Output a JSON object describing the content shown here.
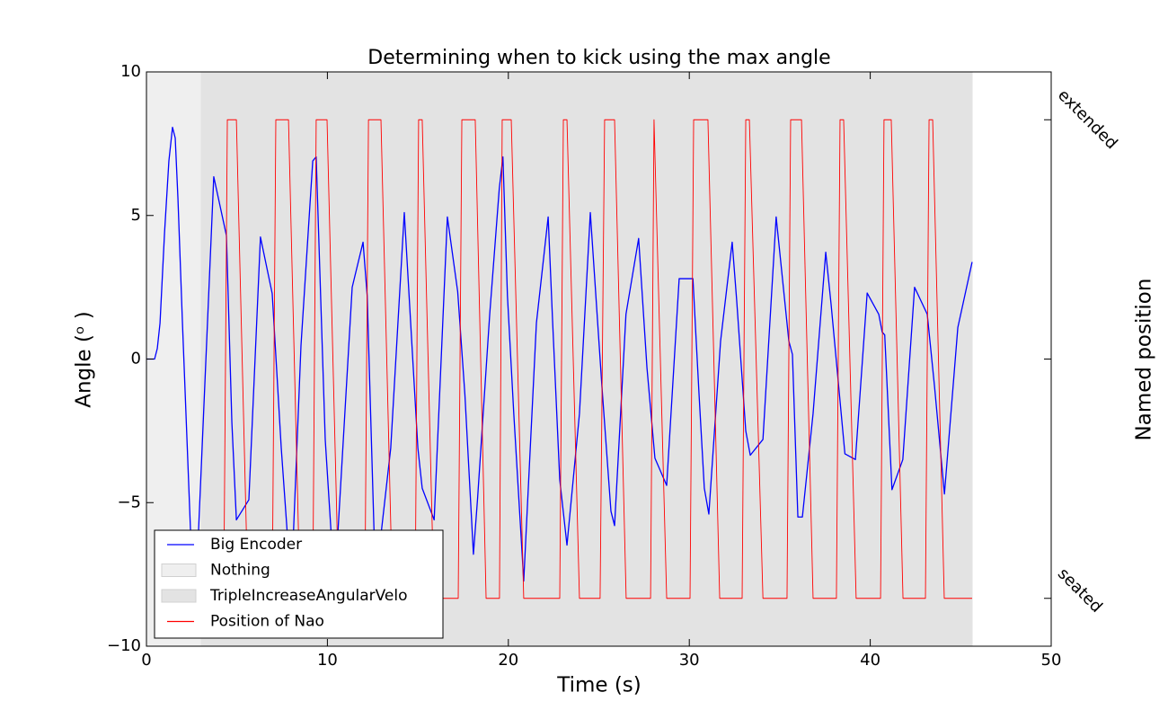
{
  "chart_data": {
    "type": "line",
    "title": "Determining when to kick using the max angle",
    "xlabel": "Time (s)",
    "ylabel": "Angle (ᵒ )",
    "y2label": "Named position",
    "xlim": [
      0,
      50
    ],
    "ylim": [
      -10,
      10
    ],
    "y2lim": [
      -1.2,
      1.2
    ],
    "xticks": [
      0,
      10,
      20,
      30,
      40,
      50
    ],
    "yticks": [
      {
        "value": -10,
        "label": "−10"
      },
      {
        "value": -5,
        "label": "−5"
      },
      0,
      5,
      10
    ],
    "y2ticks": [
      {
        "value": -1,
        "label": "seated"
      },
      {
        "value": 0,
        "label": null
      },
      {
        "value": 1,
        "label": "extended"
      }
    ],
    "spans": [
      {
        "name": "Nothing",
        "start": 0,
        "end": 3.03,
        "color": "#efefef"
      },
      {
        "name": "TripleIncreaseAngularVelo",
        "start": 3.03,
        "end": 45.63,
        "color": "#e3e3e3"
      }
    ],
    "series": [
      {
        "name": "Big Encoder",
        "color": "#0000ff",
        "x": [
          0,
          0.45,
          0.6,
          0.75,
          1.0,
          1.24,
          1.44,
          1.59,
          1.74,
          1.99,
          2.43,
          2.7,
          3.72,
          4.42,
          4.72,
          4.97,
          5.66,
          6.3,
          6.95,
          7.45,
          8.0,
          8.54,
          9.19,
          9.38,
          9.58,
          9.88,
          10.4,
          11.37,
          11.97,
          12.2,
          12.66,
          13.5,
          14.25,
          15.0,
          15.24,
          15.9,
          16.63,
          17.2,
          17.6,
          18.07,
          18.3,
          18.97,
          19.5,
          19.7,
          19.95,
          20.3,
          20.85,
          21.55,
          22.2,
          22.44,
          22.84,
          23.24,
          23.93,
          24.53,
          25.17,
          25.67,
          25.87,
          26.5,
          27.2,
          27.66,
          28.1,
          28.75,
          29.44,
          30.2,
          30.54,
          30.83,
          31.08,
          31.73,
          32.37,
          32.62,
          33.12,
          33.37,
          34.07,
          34.8,
          35.5,
          35.7,
          36.0,
          36.25,
          36.84,
          37.54,
          37.84,
          38.6,
          39.18,
          39.83,
          40.47,
          40.66,
          40.8,
          41.2,
          41.8,
          42.45,
          43.15,
          43.55,
          44.1,
          44.84,
          45.63
        ],
        "values": [
          0,
          0,
          0.37,
          1.25,
          4.4,
          6.9,
          8.07,
          7.7,
          5.6,
          1.25,
          -5.9,
          -8.6,
          6.35,
          4.3,
          -2.2,
          -5.6,
          -4.9,
          4.25,
          2.28,
          -3.1,
          -8.0,
          0.47,
          6.9,
          7.04,
          3.1,
          -2.8,
          -8.0,
          2.5,
          4.07,
          2.2,
          -7.8,
          -3.1,
          5.1,
          -3.1,
          -4.5,
          -5.6,
          4.95,
          2.35,
          -1.25,
          -6.8,
          -4.85,
          1.56,
          5.95,
          7.04,
          2.2,
          -1.9,
          -7.73,
          1.25,
          4.95,
          1.4,
          -4.2,
          -6.48,
          -1.9,
          5.1,
          -0.94,
          -5.3,
          -5.8,
          1.56,
          4.2,
          -0.3,
          -3.45,
          -4.4,
          2.8,
          2.8,
          -1.25,
          -4.5,
          -5.4,
          0.63,
          4.07,
          2.03,
          -2.5,
          -3.35,
          -2.8,
          4.95,
          0.63,
          0.16,
          -5.5,
          -5.5,
          -1.9,
          3.72,
          1.88,
          -3.3,
          -3.5,
          2.3,
          1.56,
          0.94,
          0.84,
          -4.55,
          -3.5,
          2.5,
          1.56,
          -0.94,
          -4.7,
          1.1,
          3.38
        ]
      },
      {
        "name": "Position of Nao",
        "color": "#ff0000",
        "axis": "y2",
        "x": [
          3.03,
          4.27,
          4.47,
          4.97,
          5.61,
          6.95,
          7.15,
          7.85,
          8.49,
          9.19,
          9.38,
          9.98,
          10.63,
          12.07,
          12.27,
          12.96,
          13.6,
          14.85,
          15.04,
          15.24,
          15.89,
          17.23,
          17.43,
          18.17,
          18.77,
          19.51,
          19.66,
          20.16,
          20.85,
          22.84,
          23.04,
          23.24,
          23.93,
          25.07,
          25.32,
          25.87,
          26.51,
          27.86,
          28.05,
          28.75,
          30.04,
          30.24,
          31.03,
          31.68,
          32.92,
          33.12,
          33.32,
          34.07,
          35.4,
          35.6,
          36.2,
          36.84,
          38.13,
          38.33,
          38.53,
          39.22,
          40.57,
          40.76,
          41.16,
          41.81,
          43.05,
          43.25,
          43.45,
          44.09,
          45.63
        ],
        "values": [
          -1,
          -1,
          1,
          1,
          -1,
          -1,
          1,
          1,
          -1,
          -1,
          1,
          1,
          -1,
          -1,
          1,
          1,
          -1,
          -1,
          1,
          1,
          -1,
          -1,
          1,
          1,
          -1,
          -1,
          1,
          1,
          -1,
          -1,
          1,
          1,
          -1,
          -1,
          1,
          1,
          -1,
          -1,
          1,
          -1,
          -1,
          1,
          1,
          -1,
          -1,
          1,
          1,
          -1,
          -1,
          1,
          1,
          -1,
          -1,
          1,
          1,
          -1,
          -1,
          1,
          1,
          -1,
          -1,
          1,
          1,
          -1,
          -1
        ]
      }
    ]
  }
}
